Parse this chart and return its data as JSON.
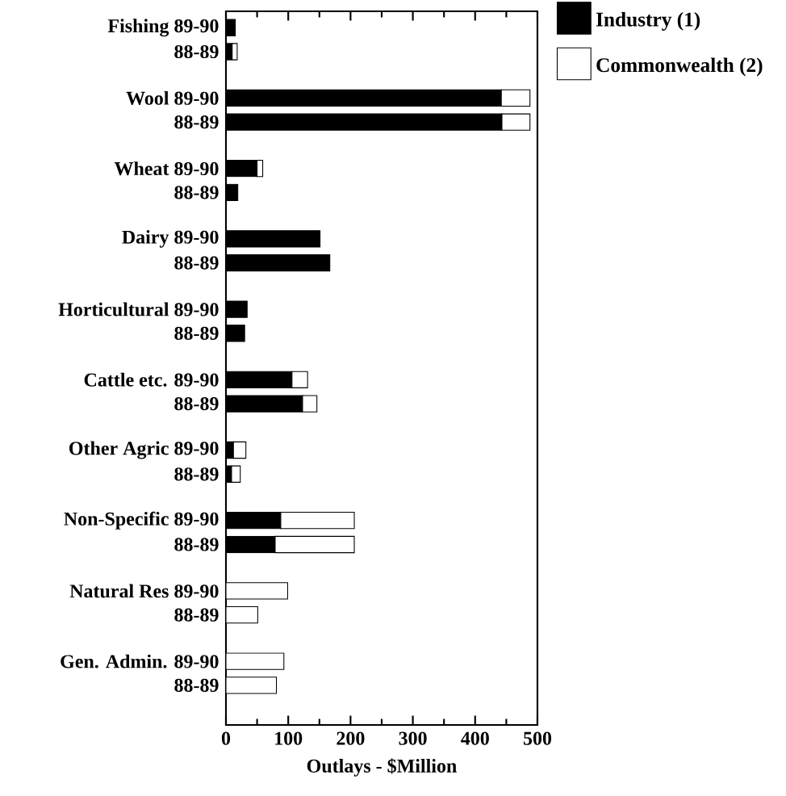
{
  "chart_data": {
    "type": "bar",
    "orientation": "horizontal",
    "stacked": true,
    "categories": [
      "Fishing 89-90",
      "88-89",
      "Wool 89-90",
      "88-89",
      "Wheat 89-90",
      "88-89",
      "Dairy 89-90",
      "88-89",
      "Horticultural 89-90",
      "88-89",
      "Cattle etc. 89-90",
      "88-89",
      "Other Agric 89-90",
      "88-89",
      "Non-Specific 89-90",
      "88-89",
      "Natural Res 89-90",
      "88-89",
      "Gen. Admin. 89-90",
      "88-89"
    ],
    "series": [
      {
        "name": "Industry (1)",
        "color": "#000000",
        "values": [
          15,
          10,
          442,
          443,
          50,
          19,
          151,
          167,
          34,
          30,
          106,
          123,
          12,
          9,
          88,
          79,
          0,
          0,
          0,
          0
        ]
      },
      {
        "name": "Commonwealth (2)",
        "color": "#ffffff",
        "values": [
          null,
          8,
          46,
          45,
          9,
          null,
          null,
          null,
          null,
          null,
          25,
          23,
          20,
          14,
          118,
          127,
          99,
          51,
          93,
          81
        ]
      }
    ],
    "xlabel": "Outlays - $Million",
    "xlim": [
      0,
      500
    ],
    "xticks": [
      0,
      100,
      200,
      300,
      400,
      500
    ],
    "legend": "top right",
    "grid": false
  }
}
